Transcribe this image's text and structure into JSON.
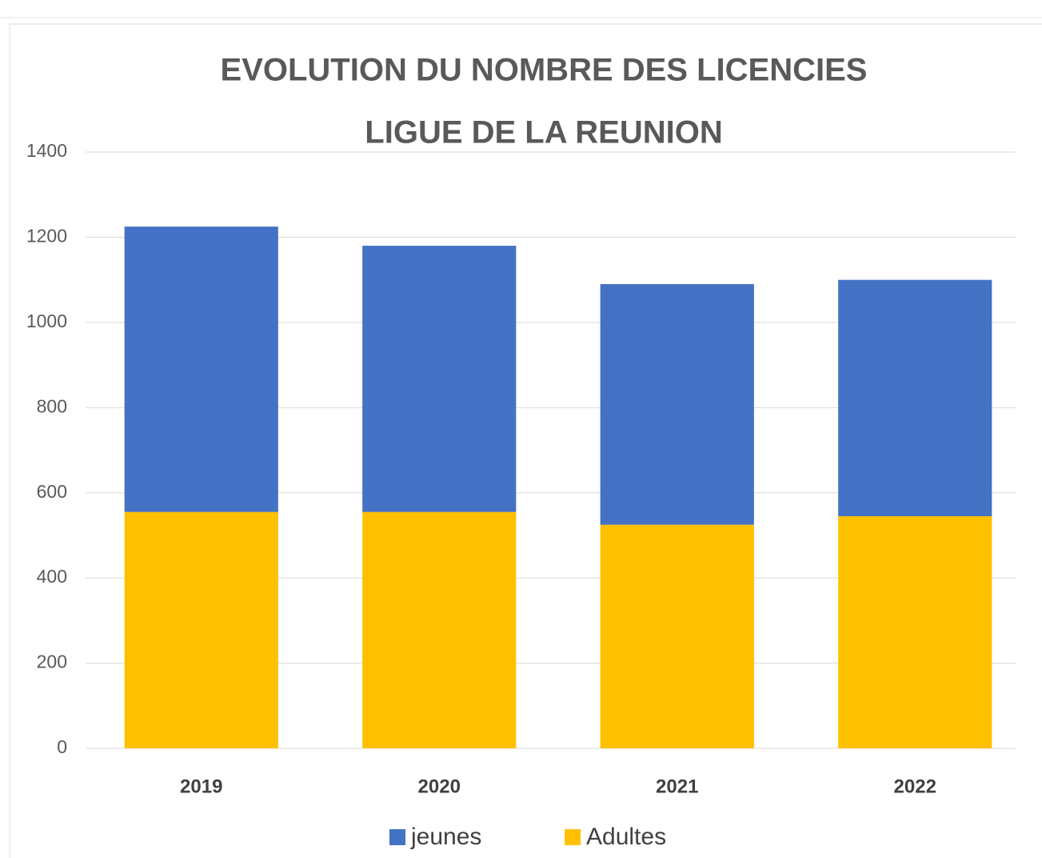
{
  "chart_data": {
    "type": "stacked_bar",
    "title": [
      "EVOLUTION DU NOMBRE DES LICENCIES",
      "LIGUE DE LA REUNION"
    ],
    "categories": [
      "2019",
      "2020",
      "2021",
      "2022"
    ],
    "series": [
      {
        "name": "jeunes",
        "color": "#4472c4",
        "values": [
          670,
          625,
          565,
          555
        ]
      },
      {
        "name": "Adultes",
        "color": "#ffc000",
        "values": [
          555,
          555,
          525,
          545
        ]
      }
    ],
    "stack_order": [
      "Adultes",
      "jeunes"
    ],
    "ylim": [
      0,
      1400
    ],
    "yticks": [
      0,
      200,
      400,
      600,
      800,
      1000,
      1200,
      1400
    ],
    "grid": true,
    "legend": "bottom"
  }
}
